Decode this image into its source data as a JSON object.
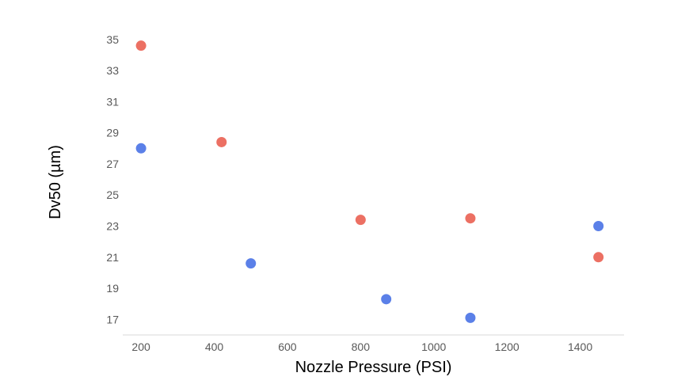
{
  "chart_data": {
    "type": "scatter",
    "title": "",
    "xlabel": "Nozzle Pressure (PSI)",
    "ylabel": "Dv50 (µm)",
    "xlim": [
      150,
      1520
    ],
    "ylim": [
      16,
      35.5
    ],
    "xticks": [
      200,
      400,
      600,
      800,
      1000,
      1200,
      1400
    ],
    "yticks": [
      17,
      19,
      21,
      23,
      25,
      27,
      29,
      31,
      33,
      35
    ],
    "grid": false,
    "legend": "none",
    "series": [
      {
        "color": "#EC7063",
        "points": [
          {
            "x": 200,
            "y": 34.6
          },
          {
            "x": 420,
            "y": 28.4
          },
          {
            "x": 800,
            "y": 23.4
          },
          {
            "x": 1100,
            "y": 23.5
          },
          {
            "x": 1450,
            "y": 21.0
          }
        ]
      },
      {
        "color": "#5B80E8",
        "points": [
          {
            "x": 200,
            "y": 28.0
          },
          {
            "x": 500,
            "y": 20.6
          },
          {
            "x": 870,
            "y": 18.3
          },
          {
            "x": 1100,
            "y": 17.1
          },
          {
            "x": 1450,
            "y": 23.0
          }
        ]
      }
    ]
  }
}
